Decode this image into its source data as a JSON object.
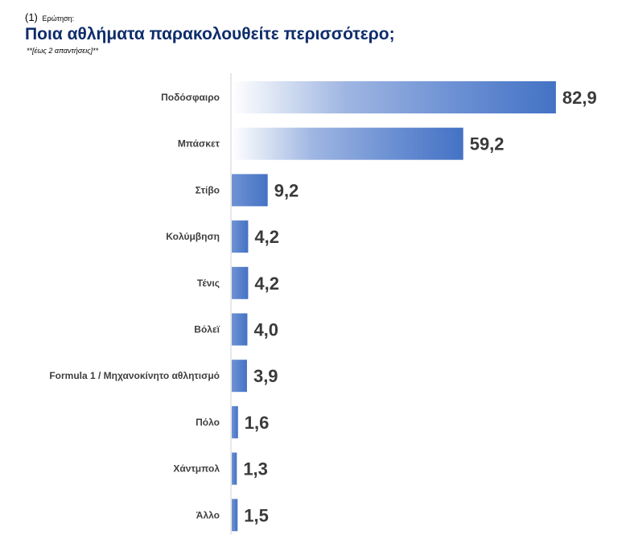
{
  "header": {
    "question_number": "(1)",
    "question_label": "Ερώτηση:",
    "title": "Ποια αθλήματα παρακολουθείτε περισσότερο;",
    "subtitle": "**[έως 2 απαντήσεις]**"
  },
  "chart_data": {
    "type": "bar",
    "orientation": "horizontal",
    "title": "Ποια αθλήματα παρακολουθείτε περισσότερο;",
    "xlabel": "",
    "ylabel": "",
    "xlim": [
      0,
      100
    ],
    "grid": false,
    "legend": "none",
    "bar_color": "#4472c4",
    "categories": [
      "Ποδόσφαιρο",
      "Μπάσκετ",
      "Στίβο",
      "Κολύμβηση",
      "Τένις",
      "Βόλεϊ",
      "Formula 1 / Μηχανοκίνητο αθλητισμό",
      "Πόλο",
      "Χάντμπολ",
      "Άλλο"
    ],
    "values": [
      82.9,
      59.2,
      9.2,
      4.2,
      4.2,
      4.0,
      3.9,
      1.6,
      1.3,
      1.5
    ],
    "value_labels": [
      "82,9",
      "59,2",
      "9,2",
      "4,2",
      "4,2",
      "4,0",
      "3,9",
      "1,6",
      "1,3",
      "1,5"
    ]
  }
}
